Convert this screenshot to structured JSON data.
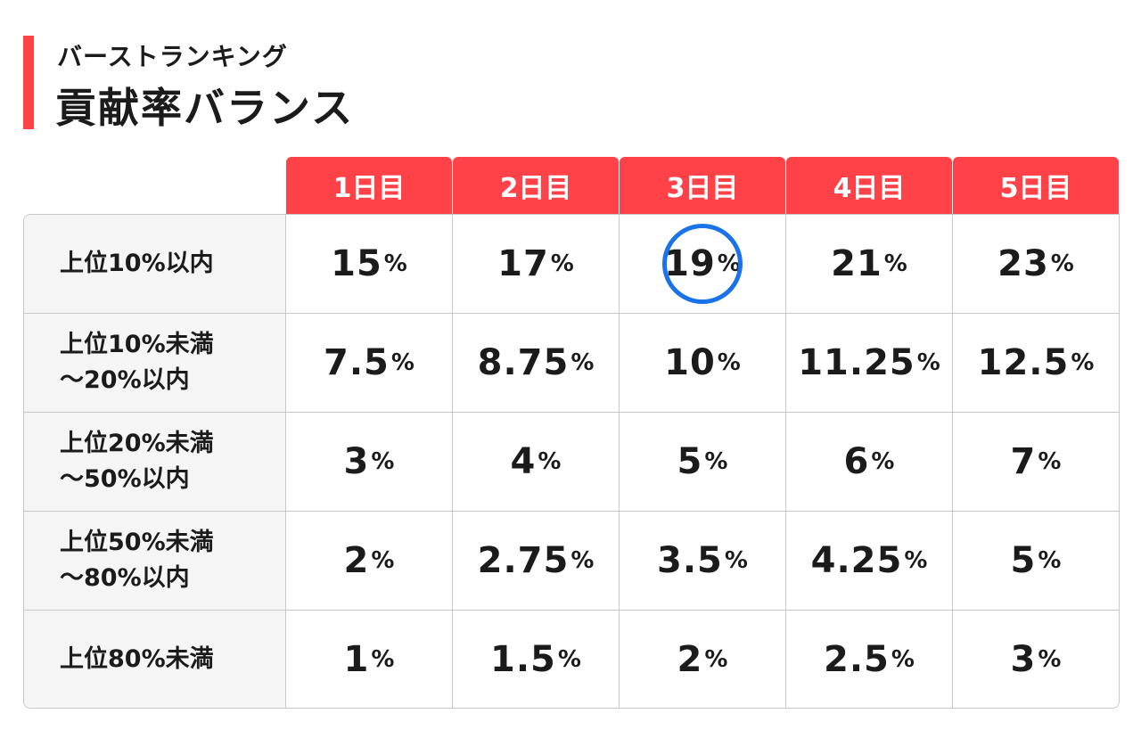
{
  "header": {
    "subtitle": "バーストランキング",
    "title": "貢献率バランス"
  },
  "days": [
    "1日目",
    "2日目",
    "3日目",
    "4日目",
    "5日目"
  ],
  "rows": [
    {
      "label": "上位10%以内",
      "values": [
        "15",
        "17",
        "19",
        "21",
        "23"
      ]
    },
    {
      "label": "上位10%未満\n～20%以内",
      "values": [
        "7.5",
        "8.75",
        "10",
        "11.25",
        "12.5"
      ]
    },
    {
      "label": "上位20%未満\n～50%以内",
      "values": [
        "3",
        "4",
        "5",
        "6",
        "7"
      ]
    },
    {
      "label": "上位50%未満\n～80%以内",
      "values": [
        "2",
        "2.75",
        "3.5",
        "4.25",
        "5"
      ]
    },
    {
      "label": "上位80%未満",
      "values": [
        "1",
        "1.5",
        "2",
        "2.5",
        "3"
      ]
    }
  ],
  "unit": "%",
  "highlight": {
    "row": 0,
    "col": 2,
    "color": "#1a73e8"
  },
  "colors": {
    "accent": "#ff4248"
  }
}
